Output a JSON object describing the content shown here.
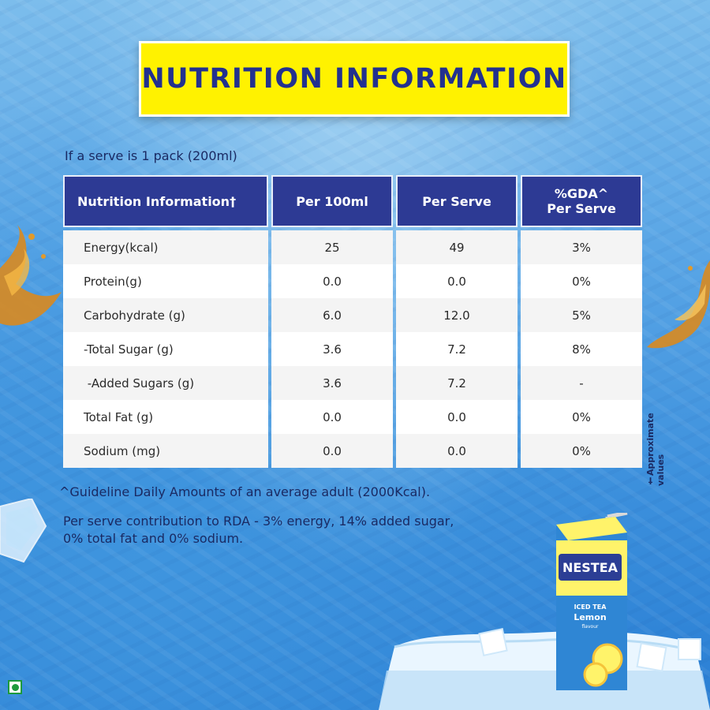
{
  "title": "NUTRITION INFORMATION",
  "serve_note": "If a serve is 1 pack (200ml)",
  "table": {
    "headers": [
      "Nutrition Information†",
      "Per 100ml",
      "Per Serve",
      "%GDA^\nPer Serve"
    ],
    "header_gda_line1": "%GDA^",
    "header_gda_line2": "Per Serve",
    "rows": [
      {
        "name": "Energy(kcal)",
        "per100": "25",
        "serve": "49",
        "gda": "3%"
      },
      {
        "name": "Protein(g)",
        "per100": "0.0",
        "serve": "0.0",
        "gda": "0%"
      },
      {
        "name": "Carbohydrate (g)",
        "per100": "6.0",
        "serve": "12.0",
        "gda": "5%"
      },
      {
        "name": "-Total Sugar (g)",
        "per100": "3.6",
        "serve": "7.2",
        "gda": "8%"
      },
      {
        "name": " -Added Sugars (g)",
        "per100": "3.6",
        "serve": "7.2",
        "gda": "-"
      },
      {
        "name": "Total Fat (g)",
        "per100": "0.0",
        "serve": "0.0",
        "gda": "0%"
      },
      {
        "name": "Sodium (mg)",
        "per100": "0.0",
        "serve": "0.0",
        "gda": "0%"
      }
    ]
  },
  "footnote_gda": "^Guideline Daily Amounts of an average adult (2000Kcal).",
  "footnote_rda_line1": "Per serve contribution to RDA - 3% energy, 14% added sugar,",
  "footnote_rda_line2": "0% total fat and 0% sodium.",
  "approx_note": "†Approximate values",
  "product": {
    "brand": "NESTEA",
    "line1": "ICED TEA",
    "flavour": "Lemon",
    "flavour_sub": "flavour"
  },
  "colors": {
    "title_bg": "#fff200",
    "title_text": "#23318f",
    "header_bg": "#2d3a94",
    "veg_mark": "#1e9a3c"
  },
  "icons": [
    "veg-mark-icon",
    "tea-splash-icon",
    "ice-cube-icon",
    "iceberg-icon",
    "nestea-pack-icon"
  ]
}
